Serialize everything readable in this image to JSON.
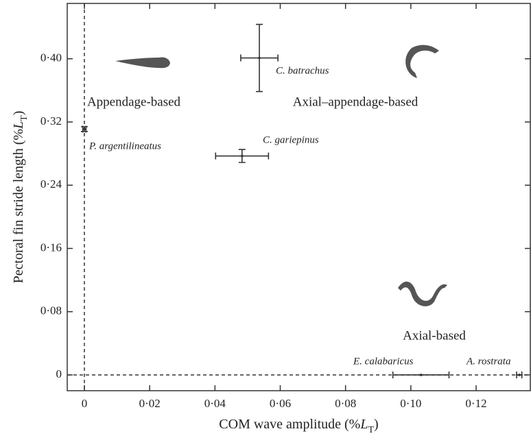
{
  "chart_data": {
    "type": "scatter",
    "x_label": [
      "COM wave amplitude (%",
      "L",
      "T",
      ")"
    ],
    "y_label": [
      "Pectoral fin stride length (%",
      "L",
      "T",
      ")"
    ],
    "xlim": [
      -0.00525,
      0.1366
    ],
    "ylim": [
      -0.02,
      0.47
    ],
    "xticks": [
      0,
      {
        "value": 0.02,
        "label": "0·02"
      },
      {
        "value": 0.04,
        "label": "0·04"
      },
      {
        "value": 0.06,
        "label": "0·06"
      },
      {
        "value": 0.08,
        "label": "0·08"
      },
      {
        "value": 0.1,
        "label": "0·10"
      },
      {
        "value": 0.12,
        "label": "0·12"
      }
    ],
    "yticks": [
      0,
      {
        "value": 0.08,
        "label": "0·08"
      },
      {
        "value": 0.16,
        "label": "0·16"
      },
      {
        "value": 0.24,
        "label": "0·24"
      },
      {
        "value": 0.32,
        "label": "0·32"
      },
      {
        "value": 0.4,
        "label": "0·40"
      }
    ],
    "color": "#333333",
    "points": [
      {
        "name": "P. argentilineatus",
        "x": 0,
        "y": 0.311,
        "xerr": 0.0005,
        "yerr": 0.003
      },
      {
        "name": "C. batrachus",
        "x": 0.0536,
        "y": 0.401,
        "xerr": 0.0057,
        "yerr": 0.0425
      },
      {
        "name": "C. gariepinus",
        "x": 0.0483,
        "y": 0.277,
        "xerr": 0.0081,
        "yerr": 0.0082
      },
      {
        "name": "E. calabaricus",
        "x": 0.1031,
        "y": 0,
        "xerr": 0.0086,
        "yerr": 0
      },
      {
        "name": "A. rostrata",
        "x": 0.1332,
        "y": 0,
        "xerr": 0.0008,
        "yerr": 0
      }
    ],
    "annotations": [
      "Appendage-based",
      "Axial–appendage-based",
      "Axial-based"
    ]
  }
}
